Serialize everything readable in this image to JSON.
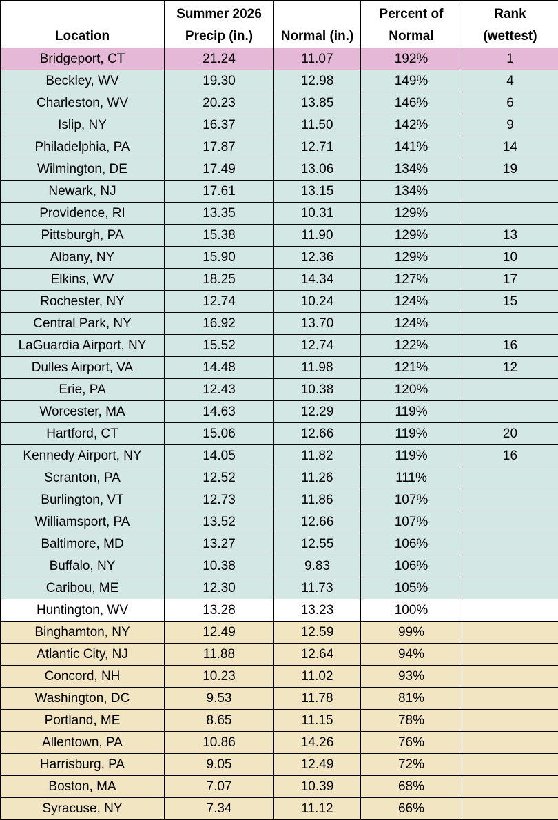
{
  "table": {
    "headers": [
      "Location",
      "Summer 2026\nPrecip (in.)",
      "Normal (in.)",
      "Percent of\nNormal",
      "Rank\n(wettest)"
    ],
    "rows": [
      [
        "Bridgeport, CT",
        "21.24",
        "11.07",
        "192%",
        1
      ],
      [
        "Beckley, WV",
        "19.30",
        "12.98",
        "149%",
        4
      ],
      [
        "Charleston, WV",
        "20.23",
        "13.85",
        "146%",
        6
      ],
      [
        "Islip, NY",
        "16.37",
        "11.50",
        "142%",
        9
      ],
      [
        "Philadelphia, PA",
        "17.87",
        "12.71",
        "141%",
        14
      ],
      [
        "Wilmington, DE",
        "17.49",
        "13.06",
        "134%",
        19
      ],
      [
        "Newark, NJ",
        "17.61",
        "13.15",
        "134%",
        null
      ],
      [
        "Providence, RI",
        "13.35",
        "10.31",
        "129%",
        null
      ],
      [
        "Pittsburgh, PA",
        "15.38",
        "11.90",
        "129%",
        13
      ],
      [
        "Albany, NY",
        "15.90",
        "12.36",
        "129%",
        10
      ],
      [
        "Elkins, WV",
        "18.25",
        "14.34",
        "127%",
        17
      ],
      [
        "Rochester, NY",
        "12.74",
        "10.24",
        "124%",
        15
      ],
      [
        "Central Park, NY",
        "16.92",
        "13.70",
        "124%",
        null
      ],
      [
        "LaGuardia Airport, NY",
        "15.52",
        "12.74",
        "122%",
        16
      ],
      [
        "Dulles Airport, VA",
        "14.48",
        "11.98",
        "121%",
        12
      ],
      [
        "Erie, PA",
        "12.43",
        "10.38",
        "120%",
        null
      ],
      [
        "Worcester, MA",
        "14.63",
        "12.29",
        "119%",
        null
      ],
      [
        "Hartford, CT",
        "15.06",
        "12.66",
        "119%",
        20
      ],
      [
        "Kennedy Airport, NY",
        "14.05",
        "11.82",
        "119%",
        16
      ],
      [
        "Scranton, PA",
        "12.52",
        "11.26",
        "111%",
        null
      ],
      [
        "Burlington, VT",
        "12.73",
        "11.86",
        "107%",
        null
      ],
      [
        "Williamsport, PA",
        "13.52",
        "12.66",
        "107%",
        null
      ],
      [
        "Baltimore, MD",
        "13.27",
        "12.55",
        "106%",
        null
      ],
      [
        "Buffalo, NY",
        "10.38",
        "9.83",
        "106%",
        null
      ],
      [
        "Caribou, ME",
        "12.30",
        "11.73",
        "105%",
        null
      ],
      [
        "Huntington, WV",
        "13.28",
        "13.23",
        "100%",
        null
      ],
      [
        "Binghamton, NY",
        "12.49",
        "12.59",
        "99%",
        null
      ],
      [
        "Atlantic City, NJ",
        "11.88",
        "12.64",
        "94%",
        null
      ],
      [
        "Concord, NH",
        "10.23",
        "11.02",
        "93%",
        null
      ],
      [
        "Washington, DC",
        "9.53",
        "11.78",
        "81%",
        null
      ],
      [
        "Portland, ME",
        "8.65",
        "11.15",
        "78%",
        null
      ],
      [
        "Allentown, PA",
        "10.86",
        "14.26",
        "76%",
        null
      ],
      [
        "Harrisburg, PA",
        "9.05",
        "12.49",
        "72%",
        null
      ],
      [
        "Boston, MA",
        "7.07",
        "10.39",
        "68%",
        null
      ],
      [
        "Syracuse, NY",
        "7.34",
        "11.12",
        "66%",
        null
      ]
    ],
    "row_colors": [
      "#e5b8d7",
      "#d3e8e4",
      "#d3e8e4",
      "#d3e8e4",
      "#d3e8e4",
      "#d3e8e4",
      "#d3e8e4",
      "#d3e8e4",
      "#d3e8e4",
      "#d3e8e4",
      "#d3e8e4",
      "#d3e8e4",
      "#d3e8e4",
      "#d3e8e4",
      "#d3e8e4",
      "#d3e8e4",
      "#d3e8e4",
      "#d3e8e4",
      "#d3e8e4",
      "#d3e8e4",
      "#d3e8e4",
      "#d3e8e4",
      "#d3e8e4",
      "#d3e8e4",
      "#d3e8e4",
      "#ffffff",
      "#f2e5c2",
      "#f2e5c2",
      "#f2e5c2",
      "#f2e5c2",
      "#f2e5c2",
      "#f2e5c2",
      "#f2e5c2",
      "#f2e5c2",
      "#f2e5c2"
    ]
  }
}
